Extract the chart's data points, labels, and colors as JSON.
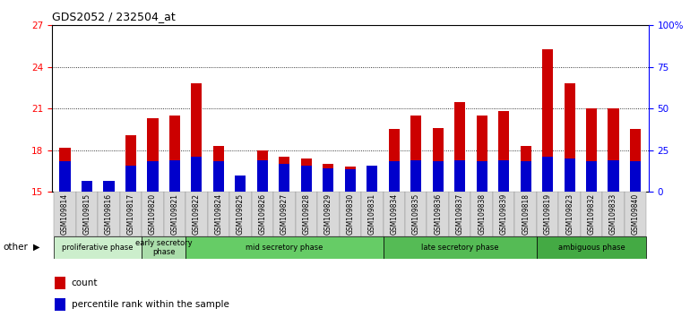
{
  "title": "GDS2052 / 232504_at",
  "samples": [
    "GSM109814",
    "GSM109815",
    "GSM109816",
    "GSM109817",
    "GSM109820",
    "GSM109821",
    "GSM109822",
    "GSM109824",
    "GSM109825",
    "GSM109826",
    "GSM109827",
    "GSM109828",
    "GSM109829",
    "GSM109830",
    "GSM109831",
    "GSM109834",
    "GSM109835",
    "GSM109836",
    "GSM109837",
    "GSM109838",
    "GSM109839",
    "GSM109818",
    "GSM109819",
    "GSM109823",
    "GSM109832",
    "GSM109833",
    "GSM109840"
  ],
  "count_values": [
    18.2,
    15.1,
    15.3,
    19.1,
    20.3,
    20.5,
    22.8,
    18.3,
    15.5,
    18.0,
    17.5,
    17.4,
    17.0,
    16.8,
    16.9,
    19.5,
    20.5,
    19.6,
    21.5,
    20.5,
    20.8,
    18.3,
    25.3,
    22.8,
    21.0,
    21.0,
    19.5
  ],
  "percentile_values": [
    17.2,
    15.8,
    15.8,
    16.9,
    17.2,
    17.3,
    17.5,
    17.2,
    16.2,
    17.3,
    17.0,
    16.9,
    16.7,
    16.6,
    16.9,
    17.2,
    17.3,
    17.2,
    17.3,
    17.2,
    17.3,
    17.2,
    17.5,
    17.4,
    17.2,
    17.3,
    17.2
  ],
  "baseline": 15.0,
  "ylim_left": [
    15,
    27
  ],
  "yticks_left": [
    15,
    18,
    21,
    24,
    27
  ],
  "ylim_right": [
    0,
    100
  ],
  "yticks_right": [
    0,
    25,
    50,
    75,
    100
  ],
  "ytick_right_labels": [
    "0",
    "25",
    "50",
    "75",
    "100%"
  ],
  "phases": [
    {
      "label": "proliferative phase",
      "start": 0,
      "end": 4,
      "color": "#cceecc"
    },
    {
      "label": "early secretory\nphase",
      "start": 4,
      "end": 6,
      "color": "#aaddaa"
    },
    {
      "label": "mid secretory phase",
      "start": 6,
      "end": 15,
      "color": "#66cc66"
    },
    {
      "label": "late secretory phase",
      "start": 15,
      "end": 22,
      "color": "#55bb55"
    },
    {
      "label": "ambiguous phase",
      "start": 22,
      "end": 27,
      "color": "#44aa44"
    }
  ],
  "bar_width": 0.5,
  "count_color": "#cc0000",
  "percentile_color": "#0000cc",
  "bg_color": "#ffffff",
  "tick_label_bg": "#d8d8d8",
  "other_label": "other"
}
